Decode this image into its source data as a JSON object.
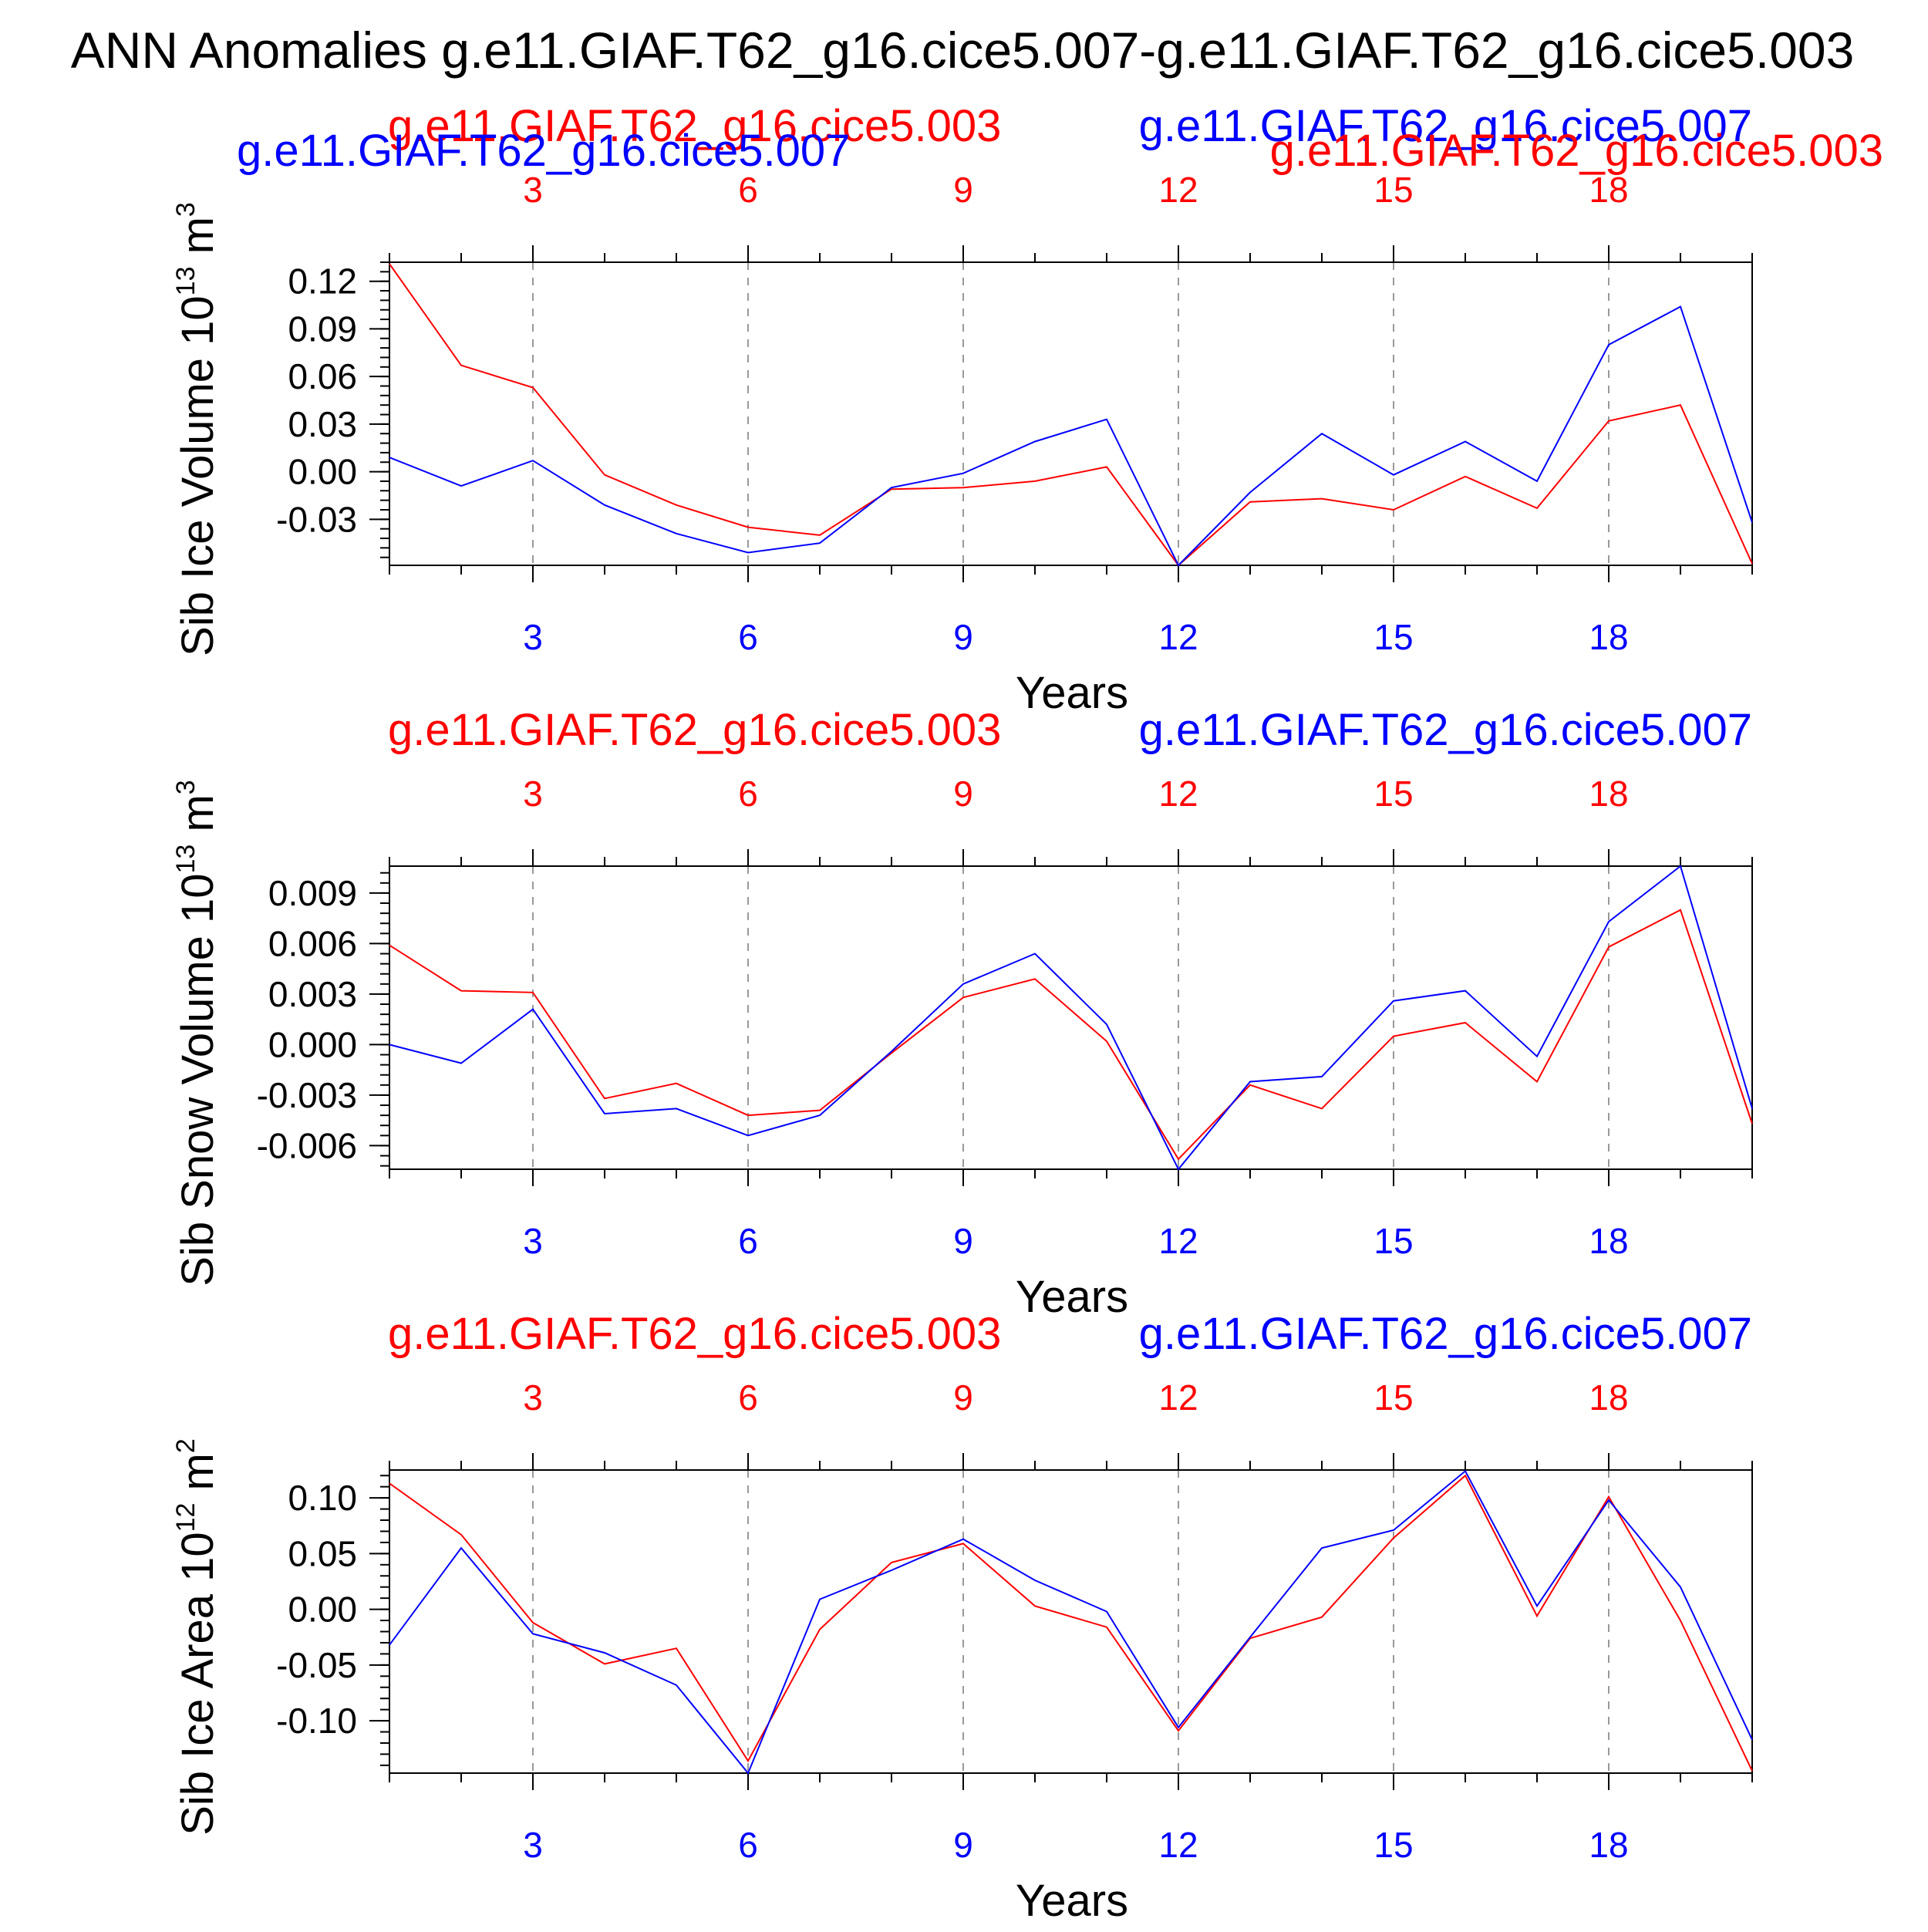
{
  "title": "ANN Anomalies g.e11.GIAF.T62_g16.cice5.007-g.e11.GIAF.T62_g16.cice5.003",
  "colors": {
    "red": "#ff0000",
    "blue": "#0000ff",
    "axis": "#000000",
    "grid": "#999999"
  },
  "chart_data": [
    {
      "type": "line",
      "ylabel": "Sib Ice Volume 10",
      "ylabel_exp": "13",
      "ylabel_unit": " m",
      "ylabel_unit_exp": "3",
      "xlabel": "Years",
      "top_left_label": "g.e11.GIAF.T62_g16.cice5.003",
      "top_right_label": "g.e11.GIAF.T62_g16.cice5.007",
      "extra_labels": [
        "g.e11.GIAF.T62_g16.cice5.007",
        "g.e11.GIAF.T62_g16.cice5.003"
      ],
      "x": [
        1,
        2,
        3,
        4,
        5,
        6,
        7,
        8,
        9,
        10,
        11,
        12,
        13,
        14,
        15,
        16,
        17,
        18,
        19,
        20
      ],
      "xlim": [
        1,
        20
      ],
      "ylim": [
        -0.059,
        0.132
      ],
      "yticks": [
        -0.03,
        0.0,
        0.03,
        0.06,
        0.09,
        0.12
      ],
      "ytick_labels": [
        "-0.03",
        "0.00",
        "0.03",
        "0.06",
        "0.09",
        "0.12"
      ],
      "yminor_step": 0.006,
      "series": [
        {
          "name": "g.e11.GIAF.T62_g16.cice5.003",
          "color": "red",
          "values": [
            0.131,
            0.067,
            0.053,
            -0.002,
            -0.021,
            -0.035,
            -0.04,
            -0.011,
            -0.01,
            -0.006,
            0.003,
            -0.059,
            -0.019,
            -0.017,
            -0.024,
            -0.003,
            -0.023,
            0.032,
            0.042,
            -0.058
          ]
        },
        {
          "name": "g.e11.GIAF.T62_g16.cice5.007",
          "color": "blue",
          "values": [
            0.009,
            -0.009,
            0.007,
            -0.021,
            -0.039,
            -0.051,
            -0.045,
            -0.01,
            -0.001,
            0.019,
            0.033,
            -0.059,
            -0.013,
            0.024,
            -0.002,
            0.019,
            -0.006,
            0.08,
            0.104,
            -0.032
          ]
        }
      ]
    },
    {
      "type": "line",
      "ylabel": "Sib Snow Volume 10",
      "ylabel_exp": "13",
      "ylabel_unit": " m",
      "ylabel_unit_exp": "3",
      "xlabel": "Years",
      "top_left_label": "g.e11.GIAF.T62_g16.cice5.003",
      "top_right_label": "g.e11.GIAF.T62_g16.cice5.007",
      "extra_labels": [],
      "x": [
        1,
        2,
        3,
        4,
        5,
        6,
        7,
        8,
        9,
        10,
        11,
        12,
        13,
        14,
        15,
        16,
        17,
        18,
        19,
        20
      ],
      "xlim": [
        1,
        20
      ],
      "ylim": [
        -0.0074,
        0.0106
      ],
      "yticks": [
        -0.006,
        -0.003,
        0.0,
        0.003,
        0.006,
        0.009
      ],
      "ytick_labels": [
        "-0.006",
        "-0.003",
        "0.000",
        "0.003",
        "0.006",
        "0.009"
      ],
      "yminor_step": 0.0006,
      "series": [
        {
          "name": "g.e11.GIAF.T62_g16.cice5.003",
          "color": "red",
          "values": [
            0.0059,
            0.0032,
            0.0031,
            -0.0032,
            -0.0023,
            -0.0042,
            -0.0039,
            -0.0005,
            0.0028,
            0.0039,
            0.0002,
            -0.0068,
            -0.0024,
            -0.0038,
            0.0005,
            0.0013,
            -0.0022,
            0.0058,
            0.008,
            -0.0047
          ]
        },
        {
          "name": "g.e11.GIAF.T62_g16.cice5.007",
          "color": "blue",
          "values": [
            0.0,
            -0.0011,
            0.0021,
            -0.0041,
            -0.0038,
            -0.0054,
            -0.0042,
            -0.0004,
            0.0036,
            0.0054,
            0.0012,
            -0.0074,
            -0.0022,
            -0.0019,
            0.0026,
            0.0032,
            -0.0007,
            0.0073,
            0.0106,
            -0.0038
          ]
        }
      ]
    },
    {
      "type": "line",
      "ylabel": "Sib Ice Area 10",
      "ylabel_exp": "12",
      "ylabel_unit": " m",
      "ylabel_unit_exp": "2",
      "xlabel": "Years",
      "top_left_label": "g.e11.GIAF.T62_g16.cice5.003",
      "top_right_label": "g.e11.GIAF.T62_g16.cice5.007",
      "extra_labels": [],
      "x": [
        1,
        2,
        3,
        4,
        5,
        6,
        7,
        8,
        9,
        10,
        11,
        12,
        13,
        14,
        15,
        16,
        17,
        18,
        19,
        20
      ],
      "xlim": [
        1,
        20
      ],
      "ylim": [
        -0.147,
        0.125
      ],
      "yticks": [
        -0.1,
        -0.05,
        0.0,
        0.05,
        0.1
      ],
      "ytick_labels": [
        "-0.10",
        "-0.05",
        "0.00",
        "0.05",
        "0.10"
      ],
      "yminor_step": 0.01,
      "series": [
        {
          "name": "g.e11.GIAF.T62_g16.cice5.003",
          "color": "red",
          "values": [
            0.113,
            0.067,
            -0.012,
            -0.049,
            -0.035,
            -0.136,
            -0.018,
            0.042,
            0.059,
            0.003,
            -0.016,
            -0.109,
            -0.026,
            -0.007,
            0.064,
            0.12,
            -0.006,
            0.101,
            -0.01,
            -0.145
          ]
        },
        {
          "name": "g.e11.GIAF.T62_g16.cice5.007",
          "color": "blue",
          "values": [
            -0.032,
            0.055,
            -0.022,
            -0.039,
            -0.068,
            -0.147,
            0.009,
            0.035,
            0.063,
            0.026,
            -0.002,
            -0.106,
            -0.025,
            0.055,
            0.071,
            0.124,
            0.003,
            0.098,
            0.02,
            -0.117
          ]
        }
      ]
    }
  ],
  "xticks": [
    3,
    6,
    9,
    12,
    15,
    18
  ],
  "xtick_labels": [
    "3",
    "6",
    "9",
    "12",
    "15",
    "18"
  ]
}
